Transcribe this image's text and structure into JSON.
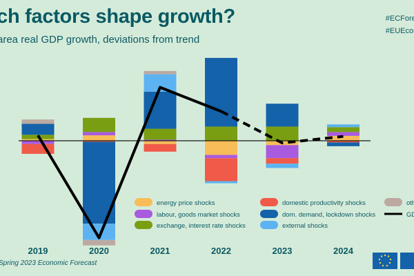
{
  "header": {
    "title": "hich factors shape growth?",
    "subtitle": "area real GDP growth, deviations from trend",
    "hashtags": [
      "#ECForecast",
      "#EUEconomy"
    ]
  },
  "footer": {
    "source": "Spring 2023 Economic Forecast"
  },
  "colors": {
    "background": "#d5ebda",
    "axis_text": "#0a5a63"
  },
  "chart_data": {
    "type": "bar",
    "stacked": true,
    "categories": [
      "2019",
      "2020",
      "2021",
      "2022",
      "2023",
      "2024"
    ],
    "ylim": [
      -9.6,
      8.2
    ],
    "series": [
      {
        "name": "energy price shocks",
        "color": "#f8bd58",
        "values": [
          0.15,
          0.5,
          -0.3,
          -1.3,
          -0.4,
          0.45
        ]
      },
      {
        "name": "labour, goods market shocks",
        "color": "#a95be0",
        "values": [
          -0.3,
          0.3,
          0.1,
          -0.3,
          -1.2,
          0.35
        ]
      },
      {
        "name": "exchange, interest rate shocks",
        "color": "#7a9e12",
        "values": [
          0.4,
          1.3,
          1.0,
          1.3,
          1.3,
          0.45
        ]
      },
      {
        "name": "domestic productivity shocks",
        "color": "#f05a48",
        "values": [
          -0.9,
          -0.1,
          -0.7,
          -2.1,
          -0.5,
          -0.15
        ]
      },
      {
        "name": "dom. demand, lockdown shocks",
        "color": "#1462a9",
        "values": [
          1.0,
          -7.5,
          3.4,
          6.3,
          2.1,
          -0.35
        ]
      },
      {
        "name": "external shocks",
        "color": "#5db3f1",
        "values": [
          0.0,
          -1.5,
          1.6,
          -0.2,
          -0.4,
          0.25
        ]
      },
      {
        "name": "other",
        "color": "#bba9a2",
        "values": [
          0.4,
          -0.5,
          0.3,
          0.0,
          0.0,
          0.0
        ]
      }
    ],
    "line": {
      "name": "GDP",
      "values": [
        0.5,
        -8.9,
        4.9,
        2.7,
        -0.2,
        0.4
      ],
      "projected_from_index": 3
    },
    "legend": [
      "energy price shocks",
      "labour, goods market shocks",
      "exchange, interest rate shocks",
      "domestic productivity shocks",
      "dom. demand, lockdown shocks",
      "external shocks",
      "other",
      "GDP"
    ],
    "legend_labels": [
      "energy price shocks",
      "labour, goods market shocks",
      "exchange, interest rate shocks",
      "domestic productivity shocks",
      "dom. demand, lockdown shocks",
      "external shocks",
      "oth",
      "GD"
    ]
  }
}
